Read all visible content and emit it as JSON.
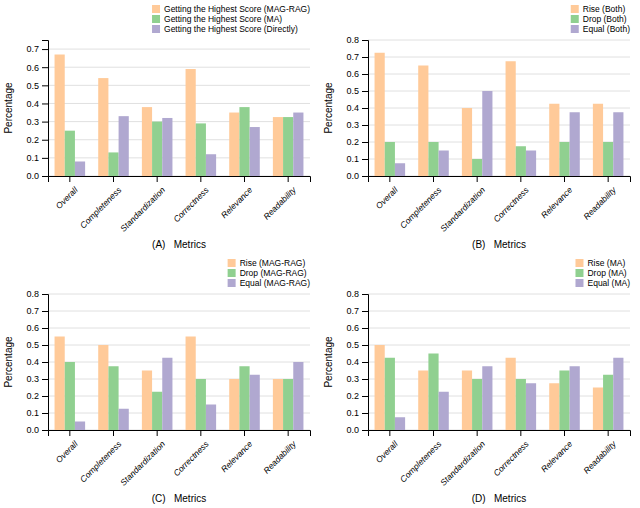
{
  "chart_data": [
    {
      "type": "bar",
      "xlabel": "(A)   Metrics",
      "ylabel": "Percentage",
      "categories": [
        "Overall",
        "Completeness",
        "Standardization",
        "Correctness",
        "Relevance",
        "Readability"
      ],
      "series": [
        {
          "name": "Getting the Highest Score (MAG-RAG)",
          "color": "#FFCA99",
          "values": [
            0.67,
            0.54,
            0.38,
            0.59,
            0.35,
            0.325
          ]
        },
        {
          "name": "Getting the Highest Score (MA)",
          "color": "#90D090",
          "values": [
            0.25,
            0.13,
            0.3,
            0.29,
            0.38,
            0.325
          ]
        },
        {
          "name": "Getting the Highest Score (Directly)",
          "color": "#B0A8D0",
          "values": [
            0.08,
            0.33,
            0.32,
            0.12,
            0.27,
            0.35
          ]
        }
      ],
      "ylim": [
        0.0,
        0.75
      ],
      "yticks": [
        {
          "value": 0.0,
          "label": "0.0"
        },
        0.1,
        0.2,
        0.3,
        0.4,
        0.5,
        0.6,
        0.7
      ],
      "grid": true,
      "legend": "upper right"
    },
    {
      "type": "bar",
      "xlabel": "(B)   Metrics",
      "ylabel": "Percentage",
      "categories": [
        "Overall",
        "Completeness",
        "Standardization",
        "Correctness",
        "Relevance",
        "Readability"
      ],
      "series": [
        {
          "name": "Rise (Both)",
          "color": "#FFCA99",
          "values": [
            0.725,
            0.65,
            0.4,
            0.675,
            0.425,
            0.425
          ]
        },
        {
          "name": "Drop (Both)",
          "color": "#90D090",
          "values": [
            0.2,
            0.2,
            0.1,
            0.175,
            0.2,
            0.2
          ]
        },
        {
          "name": "Equal (Both)",
          "color": "#B0A8D0",
          "values": [
            0.075,
            0.15,
            0.5,
            0.15,
            0.375,
            0.375
          ]
        }
      ],
      "ylim": [
        0.0,
        0.8
      ],
      "yticks": [
        {
          "value": 0.0,
          "label": "0.0"
        },
        0.1,
        0.2,
        0.3,
        0.4,
        0.5,
        0.6,
        0.7,
        0.8
      ],
      "grid": true,
      "legend": "upper right"
    },
    {
      "type": "bar",
      "xlabel": "(C)   Metrics",
      "ylabel": "Percentage",
      "categories": [
        "Overall",
        "Completeness",
        "Standardization",
        "Correctness",
        "Relevance",
        "Readability"
      ],
      "series": [
        {
          "name": "Rise (MAG-RAG)",
          "color": "#FFCA99",
          "values": [
            0.55,
            0.5,
            0.35,
            0.55,
            0.3,
            0.3
          ]
        },
        {
          "name": "Drop (MAG-RAG)",
          "color": "#90D090",
          "values": [
            0.4,
            0.375,
            0.225,
            0.3,
            0.375,
            0.3
          ]
        },
        {
          "name": "Equal (MAG-RAG)",
          "color": "#B0A8D0",
          "values": [
            0.05,
            0.125,
            0.425,
            0.15,
            0.325,
            0.4
          ]
        }
      ],
      "ylim": [
        0.0,
        0.8
      ],
      "yticks": [
        {
          "value": 0.0,
          "label": "0.0"
        },
        0.1,
        0.2,
        0.3,
        0.4,
        0.5,
        0.6,
        0.7,
        0.8
      ],
      "grid": true,
      "legend": "upper right"
    },
    {
      "type": "bar",
      "xlabel": "(D)   Metrics",
      "ylabel": "Percentage",
      "categories": [
        "Overall",
        "Completeness",
        "Standardization",
        "Correctness",
        "Relevance",
        "Readability"
      ],
      "series": [
        {
          "name": "Rise (MA)",
          "color": "#FFCA99",
          "values": [
            0.5,
            0.35,
            0.35,
            0.425,
            0.275,
            0.25
          ]
        },
        {
          "name": "Drop (MA)",
          "color": "#90D090",
          "values": [
            0.425,
            0.45,
            0.3,
            0.3,
            0.35,
            0.325
          ]
        },
        {
          "name": "Equal (MA)",
          "color": "#B0A8D0",
          "values": [
            0.075,
            0.225,
            0.375,
            0.275,
            0.375,
            0.425
          ]
        }
      ],
      "ylim": [
        0.0,
        0.8
      ],
      "yticks": [
        {
          "value": 0.0,
          "label": "0.0"
        },
        0.1,
        0.2,
        0.3,
        0.4,
        0.5,
        0.6,
        0.7,
        0.8
      ],
      "grid": true,
      "legend": "upper right"
    }
  ]
}
